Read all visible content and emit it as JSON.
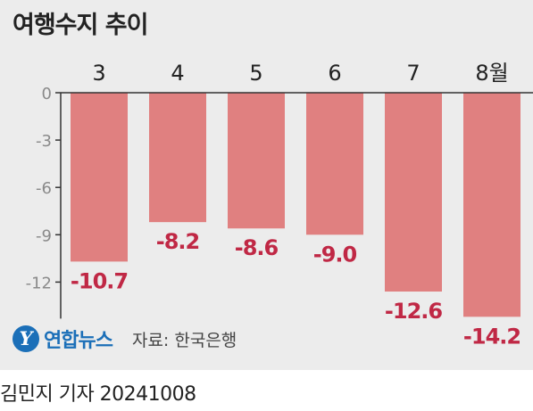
{
  "chart_data": {
    "type": "bar",
    "title": "여행수지 추이",
    "categories": [
      "3",
      "4",
      "5",
      "6",
      "7",
      "8월"
    ],
    "values": [
      -10.7,
      -8.2,
      -8.6,
      -9.0,
      -12.6,
      -14.2
    ],
    "value_labels": [
      "-10.7",
      "-8.2",
      "-8.6",
      "-9.0",
      "-12.6",
      "-14.2"
    ],
    "yticks": [
      0,
      -3,
      -6,
      -9,
      -12
    ],
    "ytick_labels": [
      "0",
      "-3",
      "-6",
      "-9",
      "-12"
    ],
    "ylim": [
      -14.2,
      0
    ],
    "grid": false,
    "category_axis_position": "top",
    "colors": {
      "bar": "#e08080",
      "value_label": "#c02845",
      "axis": "#333333",
      "tick_label": "#8a8a8a",
      "category_label": "#222222"
    }
  },
  "source": {
    "logo_text": "연합뉴스",
    "logo_icon": "yonhap-logo-icon",
    "text": "자료: 한국은행"
  },
  "credit": "김민지 기자  20241008"
}
